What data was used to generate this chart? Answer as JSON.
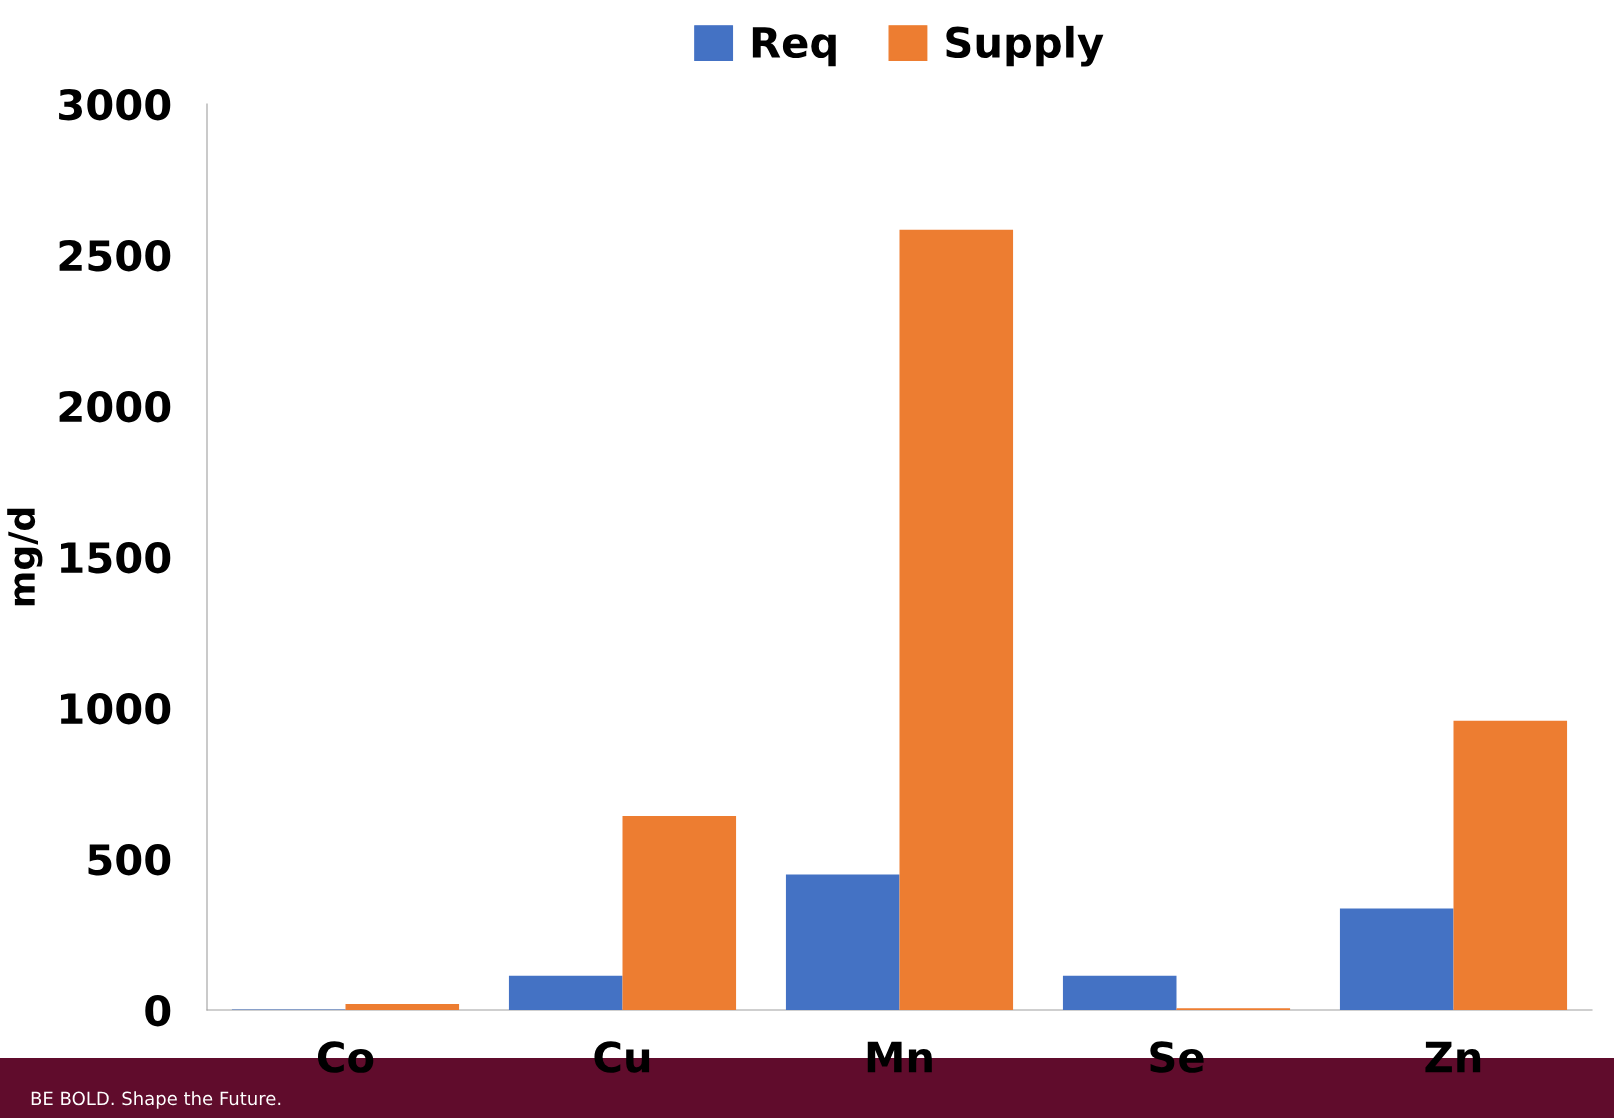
{
  "chart_data": {
    "type": "bar",
    "ylabel": "mg/d",
    "categories": [
      "Co",
      "Cu",
      "Mn",
      "Se",
      "Zn"
    ],
    "series": [
      {
        "name": "Req",
        "color": "#4472c4",
        "values": [
          2,
          113,
          449,
          113,
          336
        ]
      },
      {
        "name": "Supply",
        "color": "#ed7d31",
        "values": [
          20,
          642,
          2584,
          6,
          958
        ]
      }
    ],
    "ylim": [
      0,
      3000
    ],
    "yticks": [
      0,
      500,
      1000,
      1500,
      2000,
      2500,
      3000
    ],
    "grid": false,
    "legend": "top",
    "annotations": [
      "BE BOLD. Shape the Future."
    ]
  }
}
